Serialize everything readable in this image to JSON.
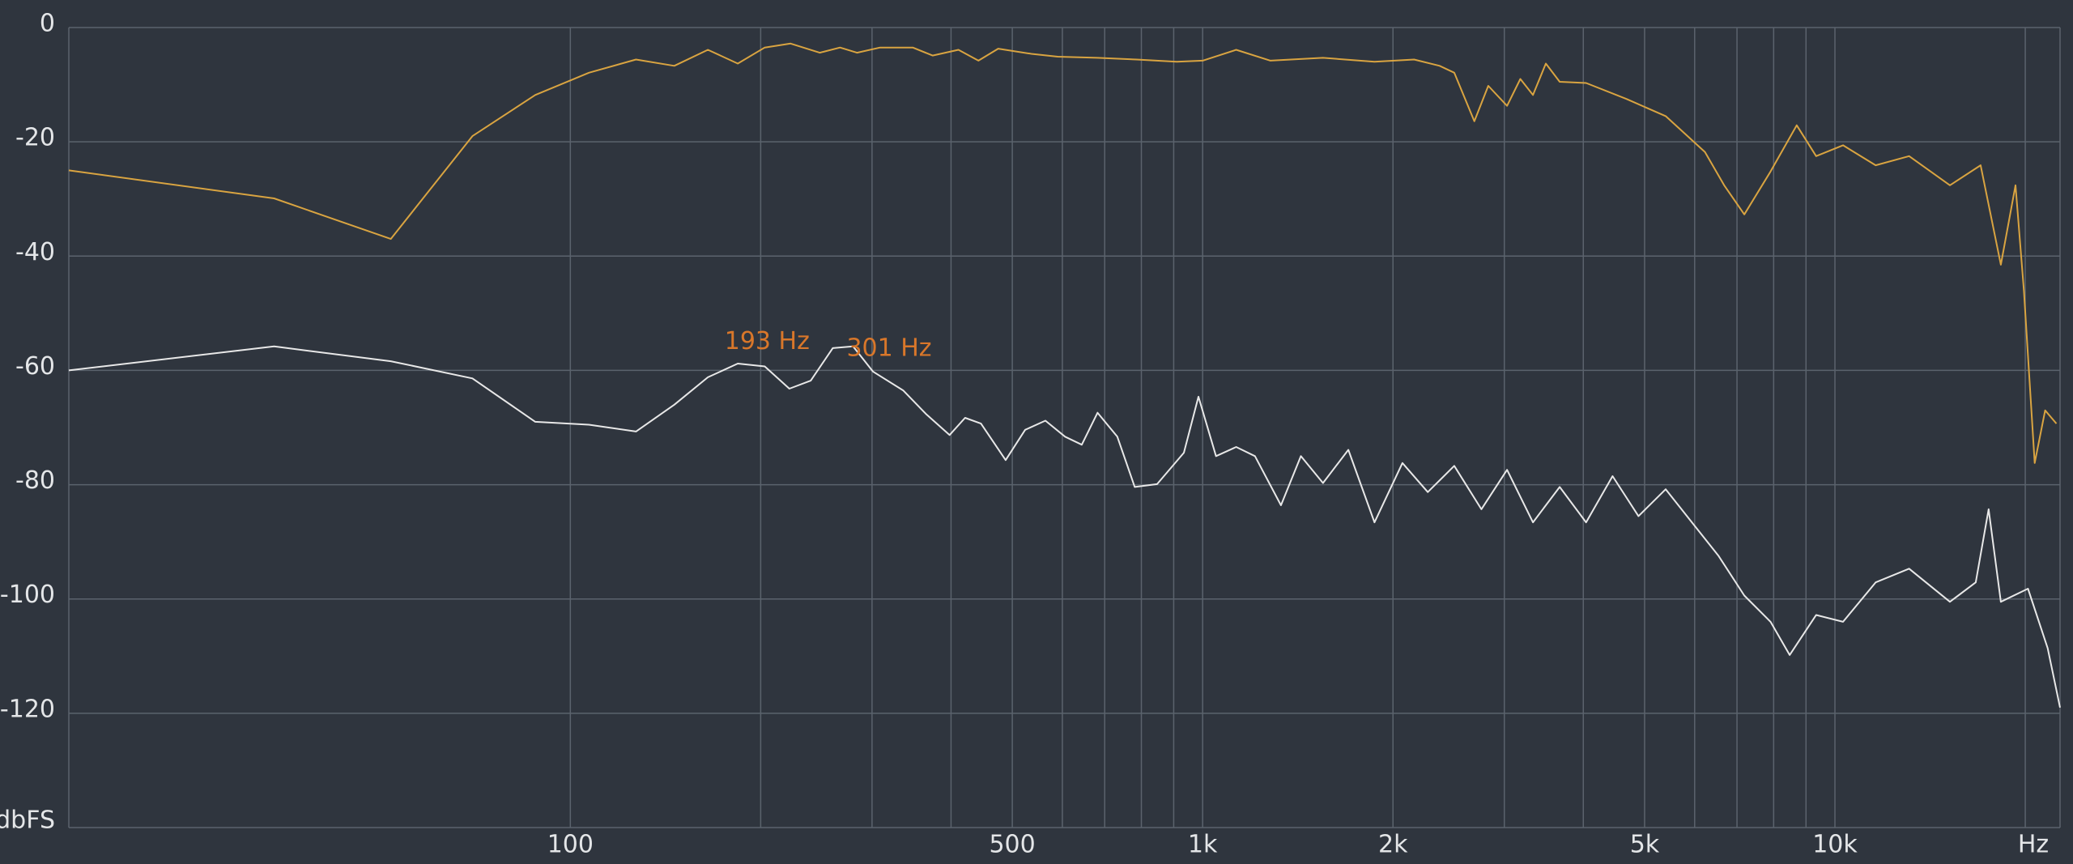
{
  "chart_data": {
    "type": "line",
    "ylabel": "dbFS",
    "xlabel": "Hz",
    "log_x": true,
    "grid": true,
    "xlim": [
      16.1,
      22700
    ],
    "ylim": [
      -140,
      0
    ],
    "yticks": [
      0,
      -20,
      -40,
      -60,
      -80,
      -100,
      -120
    ],
    "xticks": [
      100,
      500,
      {
        "value": 1000,
        "label": "1k"
      },
      {
        "value": 2000,
        "label": "2k"
      },
      {
        "value": 5000,
        "label": "5k"
      },
      {
        "value": 10000,
        "label": "10k"
      }
    ],
    "xgrid": [
      100,
      200,
      300,
      400,
      500,
      600,
      700,
      800,
      900,
      1000,
      2000,
      3000,
      4000,
      5000,
      6000,
      7000,
      8000,
      9000,
      10000,
      20000
    ],
    "series": [
      {
        "color": "#d9a441",
        "x": [
          16.1,
          34,
          52,
          70,
          88,
          107,
          127,
          146,
          165,
          184,
          203,
          223,
          248,
          267,
          284,
          309,
          348,
          374,
          411,
          442,
          475,
          536,
          590,
          681,
          786,
          910,
          1000,
          1130,
          1280,
          1550,
          1870,
          2160,
          2370,
          2500,
          2690,
          2830,
          3030,
          3180,
          3330,
          3490,
          3670,
          4040,
          4680,
          5400,
          6230,
          6680,
          7190,
          7910,
          8700,
          9340,
          10300,
          11600,
          13100,
          15200,
          17000,
          18300,
          19300,
          19900,
          20700,
          21500,
          22400
        ],
        "values": [
          -25,
          -29.9,
          -37,
          -19,
          -11.8,
          -7.9,
          -5.6,
          -6.7,
          -3.9,
          -6.3,
          -3.5,
          -2.8,
          -4.4,
          -3.5,
          -4.4,
          -3.5,
          -3.5,
          -4.9,
          -3.9,
          -5.8,
          -3.7,
          -4.6,
          -5.1,
          -5.3,
          -5.6,
          -6,
          -5.8,
          -3.9,
          -5.8,
          -5.3,
          -6,
          -5.6,
          -6.7,
          -7.9,
          -16.4,
          -10.2,
          -13.7,
          -9,
          -11.8,
          -6.3,
          -9.5,
          -9.7,
          -12.5,
          -15.5,
          -21.8,
          -27.6,
          -32.7,
          -25.2,
          -17.1,
          -22.5,
          -20.6,
          -24.1,
          -22.5,
          -27.6,
          -24.1,
          -41.5,
          -27.6,
          -46.1,
          -76.2,
          -67,
          -69.3
        ]
      },
      {
        "color": "#e8e8e8",
        "x": [
          16.1,
          34,
          52,
          70,
          88,
          107,
          127,
          146,
          165,
          184,
          203,
          222,
          240,
          260,
          280,
          301,
          336,
          365,
          398,
          421,
          446,
          488,
          524,
          564,
          606,
          644,
          682,
          733,
          781,
          847,
          934,
          985,
          1050,
          1130,
          1210,
          1330,
          1430,
          1550,
          1700,
          1870,
          2070,
          2270,
          2500,
          2760,
          3030,
          3330,
          3670,
          4040,
          4450,
          4890,
          5400,
          5940,
          6540,
          7190,
          7910,
          8480,
          9340,
          10300,
          11600,
          13100,
          15200,
          16700,
          17500,
          18300,
          20200,
          21700,
          22700
        ],
        "values": [
          -60,
          -55.8,
          -58.4,
          -61.4,
          -69,
          -69.5,
          -70.7,
          -66,
          -61.2,
          -58.8,
          -59.3,
          -63.2,
          -61.8,
          -56.1,
          -55.8,
          -60.2,
          -63.5,
          -67.6,
          -71.3,
          -68.3,
          -69.3,
          -75.7,
          -70.4,
          -68.8,
          -71.6,
          -73,
          -67.4,
          -71.6,
          -80.4,
          -79.9,
          -74.4,
          -64.6,
          -75,
          -73.4,
          -75,
          -83.6,
          -75,
          -79.7,
          -73.9,
          -86.6,
          -76.2,
          -81.3,
          -76.7,
          -84.3,
          -77.4,
          -86.6,
          -80.4,
          -86.6,
          -78.5,
          -85.5,
          -80.8,
          -86.6,
          -92.4,
          -99.4,
          -104,
          -109.8,
          -102.8,
          -104,
          -97.1,
          -94.7,
          -100.5,
          -97.1,
          -84.3,
          -100.5,
          -98.2,
          -108.6,
          -119
        ]
      }
    ],
    "annotations": [
      {
        "text": "193 Hz",
        "x": 193,
        "color": "#d9772a"
      },
      {
        "text": "301 Hz",
        "x": 301,
        "color": "#d9772a"
      }
    ]
  }
}
